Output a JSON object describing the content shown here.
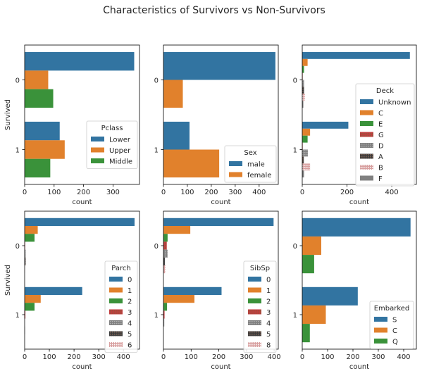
{
  "title": "Characteristics of Survivors vs Non-Survivors",
  "colors": {
    "blue": "#3274a1",
    "orange": "#e1812c",
    "green": "#3a923a",
    "brown": "#c03d3e",
    "gray": "#808080",
    "dark": "#3b3b3b",
    "pink": "#d8a0a0"
  },
  "chart_data": [
    {
      "type": "bar",
      "orientation": "horizontal",
      "categories": [
        "0",
        "1"
      ],
      "ylabel": "Survived",
      "xlabel": "count",
      "xlim": [
        0,
        390
      ],
      "xticks": [
        0,
        100,
        200,
        300
      ],
      "legend_title": "Pclass",
      "legend_loc": "lower right",
      "series": [
        {
          "name": "Lower",
          "color": "blue",
          "values": [
            372,
            119
          ]
        },
        {
          "name": "Upper",
          "color": "orange",
          "values": [
            80,
            136
          ]
        },
        {
          "name": "Middle",
          "color": "green",
          "values": [
            97,
            87
          ]
        }
      ]
    },
    {
      "type": "bar",
      "orientation": "horizontal",
      "categories": [
        "0",
        "1"
      ],
      "ylabel": "",
      "xlabel": "count",
      "xlim": [
        0,
        480
      ],
      "xticks": [
        0,
        100,
        200,
        300,
        400
      ],
      "legend_title": "Sex",
      "legend_loc": "lower right",
      "series": [
        {
          "name": "male",
          "color": "blue",
          "values": [
            468,
            109
          ]
        },
        {
          "name": "female",
          "color": "orange",
          "values": [
            81,
            233
          ]
        }
      ]
    },
    {
      "type": "bar",
      "orientation": "horizontal",
      "categories": [
        "0",
        "1"
      ],
      "ylabel": "",
      "xlabel": "count",
      "xlim": [
        0,
        510
      ],
      "xticks": [
        0,
        200,
        400
      ],
      "legend_title": "Deck",
      "legend_loc": "right",
      "series": [
        {
          "name": "Unknown",
          "color": "blue",
          "values": [
            481,
            206
          ]
        },
        {
          "name": "C",
          "color": "orange",
          "values": [
            24,
            35
          ]
        },
        {
          "name": "E",
          "color": "green",
          "values": [
            8,
            24
          ]
        },
        {
          "name": "G",
          "color": "brown",
          "values": [
            2,
            2
          ]
        },
        {
          "name": "D",
          "color": "gray",
          "values": [
            8,
            25
          ]
        },
        {
          "name": "A",
          "color": "dark",
          "values": [
            8,
            7
          ]
        },
        {
          "name": "B",
          "color": "pink",
          "values": [
            12,
            35
          ]
        },
        {
          "name": "F",
          "color": "gray",
          "values": [
            5,
            8
          ]
        }
      ]
    },
    {
      "type": "bar",
      "orientation": "horizontal",
      "categories": [
        "0",
        "1"
      ],
      "ylabel": "Survived",
      "xlabel": "count",
      "xlim": [
        0,
        465
      ],
      "xticks": [
        0,
        100,
        200,
        300,
        400
      ],
      "legend_title": "Parch",
      "legend_loc": "lower right",
      "series": [
        {
          "name": "0",
          "color": "blue",
          "values": [
            445,
            233
          ]
        },
        {
          "name": "1",
          "color": "orange",
          "values": [
            53,
            65
          ]
        },
        {
          "name": "2",
          "color": "green",
          "values": [
            40,
            40
          ]
        },
        {
          "name": "3",
          "color": "brown",
          "values": [
            2,
            3
          ]
        },
        {
          "name": "4",
          "color": "gray",
          "values": [
            4,
            0
          ]
        },
        {
          "name": "5",
          "color": "dark",
          "values": [
            4,
            1
          ]
        },
        {
          "name": "6",
          "color": "pink",
          "values": [
            1,
            0
          ]
        }
      ]
    },
    {
      "type": "bar",
      "orientation": "horizontal",
      "categories": [
        "0",
        "1"
      ],
      "ylabel": "",
      "xlabel": "count",
      "xlim": [
        0,
        415
      ],
      "xticks": [
        0,
        100,
        200,
        300,
        400
      ],
      "legend_title": "SibSp",
      "legend_loc": "lower right",
      "series": [
        {
          "name": "0",
          "color": "blue",
          "values": [
            398,
            210
          ]
        },
        {
          "name": "1",
          "color": "orange",
          "values": [
            97,
            112
          ]
        },
        {
          "name": "2",
          "color": "green",
          "values": [
            15,
            13
          ]
        },
        {
          "name": "3",
          "color": "brown",
          "values": [
            12,
            4
          ]
        },
        {
          "name": "4",
          "color": "gray",
          "values": [
            15,
            3
          ]
        },
        {
          "name": "5",
          "color": "dark",
          "values": [
            5,
            0
          ]
        },
        {
          "name": "8",
          "color": "pink",
          "values": [
            7,
            0
          ]
        }
      ]
    },
    {
      "type": "bar",
      "orientation": "horizontal",
      "categories": [
        "0",
        "1"
      ],
      "ylabel": "",
      "xlabel": "count",
      "xlim": [
        0,
        450
      ],
      "xticks": [
        0,
        100,
        200,
        300,
        400
      ],
      "legend_title": "Embarked",
      "legend_loc": "lower right",
      "series": [
        {
          "name": "S",
          "color": "blue",
          "values": [
            427,
            219
          ]
        },
        {
          "name": "C",
          "color": "orange",
          "values": [
            75,
            93
          ]
        },
        {
          "name": "Q",
          "color": "green",
          "values": [
            47,
            30
          ]
        }
      ]
    }
  ]
}
